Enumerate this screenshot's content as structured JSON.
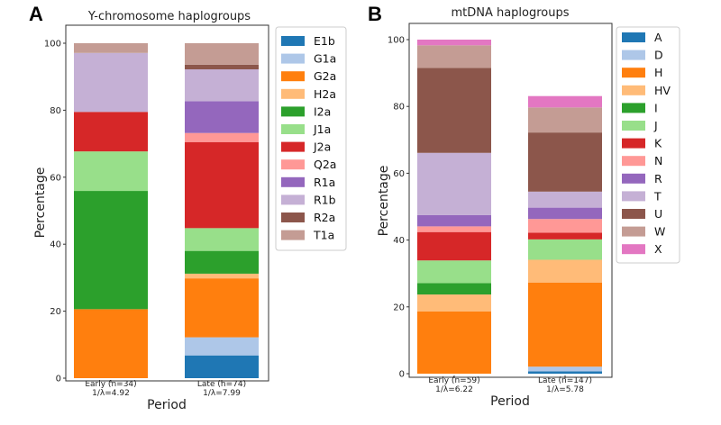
{
  "charts": [
    {
      "panel_letter": "A",
      "title": "Y-chromosome haplogroups",
      "xlabel": "Period",
      "ylabel": "Percentage",
      "yticks": [
        "0",
        "20",
        "40",
        "60",
        "80",
        "100"
      ],
      "categories": [
        {
          "line1": "Early (n=34)",
          "line2": "1/λ=4.92"
        },
        {
          "line1": "Late (n=74)",
          "line2": "1/λ=7.99"
        }
      ],
      "legend": [
        {
          "label": "E1b",
          "color": "#1f77b4"
        },
        {
          "label": "G1a",
          "color": "#aec7e8"
        },
        {
          "label": "G2a",
          "color": "#ff7f0e"
        },
        {
          "label": "H2a",
          "color": "#ffbb78"
        },
        {
          "label": "I2a",
          "color": "#2ca02c"
        },
        {
          "label": "J1a",
          "color": "#98df8a"
        },
        {
          "label": "J2a",
          "color": "#d62728"
        },
        {
          "label": "Q2a",
          "color": "#ff9896"
        },
        {
          "label": "R1a",
          "color": "#9467bd"
        },
        {
          "label": "R1b",
          "color": "#c5b0d5"
        },
        {
          "label": "R2a",
          "color": "#8c564b"
        },
        {
          "label": "T1a",
          "color": "#c49c94"
        }
      ]
    },
    {
      "panel_letter": "B",
      "title": "mtDNA haplogroups",
      "xlabel": "Period",
      "ylabel": "Percentage",
      "yticks": [
        "0",
        "20",
        "40",
        "60",
        "80",
        "100"
      ],
      "categories": [
        {
          "line1": "Early (n=59)",
          "line2": "1/λ=6.22"
        },
        {
          "line1": "Late (n=147)",
          "line2": "1/λ=5.78"
        }
      ],
      "legend": [
        {
          "label": "A",
          "color": "#1f77b4"
        },
        {
          "label": "D",
          "color": "#aec7e8"
        },
        {
          "label": "H",
          "color": "#ff7f0e"
        },
        {
          "label": "HV",
          "color": "#ffbb78"
        },
        {
          "label": "I",
          "color": "#2ca02c"
        },
        {
          "label": "J",
          "color": "#98df8a"
        },
        {
          "label": "K",
          "color": "#d62728"
        },
        {
          "label": "N",
          "color": "#ff9896"
        },
        {
          "label": "R",
          "color": "#9467bd"
        },
        {
          "label": "T",
          "color": "#c5b0d5"
        },
        {
          "label": "U",
          "color": "#8c564b"
        },
        {
          "label": "W",
          "color": "#c49c94"
        },
        {
          "label": "X",
          "color": "#e377c2"
        }
      ]
    }
  ],
  "chart_data": [
    {
      "type": "bar",
      "stacked": true,
      "title": "Y-chromosome haplogroups",
      "xlabel": "Period",
      "ylabel": "Percentage",
      "ylim": [
        0,
        100
      ],
      "categories": [
        "Early (n=34) 1/λ=4.92",
        "Late (n=74) 1/λ=7.99"
      ],
      "series": [
        {
          "name": "E1b",
          "values": [
            0,
            6.8
          ]
        },
        {
          "name": "G1a",
          "values": [
            0,
            5.4
          ]
        },
        {
          "name": "G2a",
          "values": [
            20.6,
            17.6
          ]
        },
        {
          "name": "H2a",
          "values": [
            0,
            1.4
          ]
        },
        {
          "name": "I2a",
          "values": [
            35.3,
            6.8
          ]
        },
        {
          "name": "J1a",
          "values": [
            11.8,
            6.8
          ]
        },
        {
          "name": "J2a",
          "values": [
            11.8,
            25.7
          ]
        },
        {
          "name": "Q2a",
          "values": [
            0,
            2.7
          ]
        },
        {
          "name": "R1a",
          "values": [
            0,
            9.5
          ]
        },
        {
          "name": "R1b",
          "values": [
            17.6,
            9.5
          ]
        },
        {
          "name": "R2a",
          "values": [
            0,
            1.4
          ]
        },
        {
          "name": "T1a",
          "values": [
            2.9,
            6.4
          ]
        }
      ]
    },
    {
      "type": "bar",
      "stacked": true,
      "title": "mtDNA haplogroups",
      "xlabel": "Period",
      "ylabel": "Percentage",
      "ylim": [
        0,
        100
      ],
      "categories": [
        "Early (n=59) 1/λ=6.22",
        "Late (n=147) 1/λ=5.78"
      ],
      "series": [
        {
          "name": "A",
          "values": [
            0,
            0.7
          ]
        },
        {
          "name": "D",
          "values": [
            0,
            1.4
          ]
        },
        {
          "name": "H",
          "values": [
            18.6,
            25.2
          ]
        },
        {
          "name": "HV",
          "values": [
            5.1,
            6.8
          ]
        },
        {
          "name": "I",
          "values": [
            3.4,
            0
          ]
        },
        {
          "name": "J",
          "values": [
            6.8,
            6.1
          ]
        },
        {
          "name": "K",
          "values": [
            8.5,
            2.0
          ]
        },
        {
          "name": "N",
          "values": [
            1.7,
            4.1
          ]
        },
        {
          "name": "R",
          "values": [
            3.4,
            3.4
          ]
        },
        {
          "name": "T",
          "values": [
            18.6,
            4.8
          ]
        },
        {
          "name": "U",
          "values": [
            25.4,
            17.7
          ]
        },
        {
          "name": "W",
          "values": [
            6.8,
            7.5
          ]
        },
        {
          "name": "X",
          "values": [
            1.7,
            3.4
          ]
        }
      ]
    }
  ]
}
